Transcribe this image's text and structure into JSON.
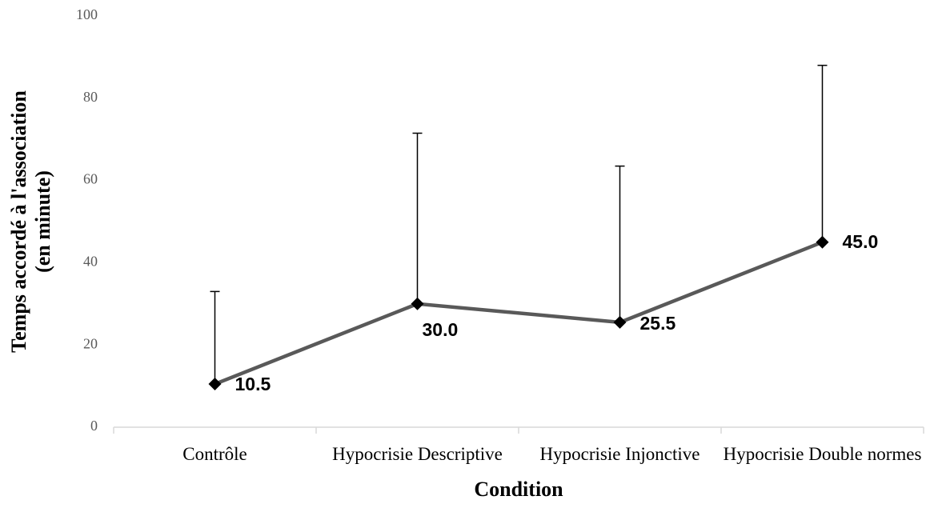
{
  "chart_data": {
    "type": "line",
    "ylabel": [
      "Temps accordé à l'association",
      "(en minute)"
    ],
    "xlabel": "Condition",
    "categories": [
      "Contrôle",
      "Hypocrisie Descriptive",
      "Hypocrisie Injonctive",
      "Hypocrisie Double normes"
    ],
    "values": [
      10.5,
      30.0,
      25.5,
      45.0
    ],
    "value_labels": [
      "10.5",
      "30.0",
      "25.5",
      "45.0"
    ],
    "errors": [
      22.5,
      41.5,
      38,
      43
    ],
    "color": "#595959",
    "marker_color": "#000000",
    "ylim": [
      0,
      100
    ],
    "yticks": [
      0,
      20,
      40,
      60,
      80,
      100
    ],
    "grid": false
  }
}
